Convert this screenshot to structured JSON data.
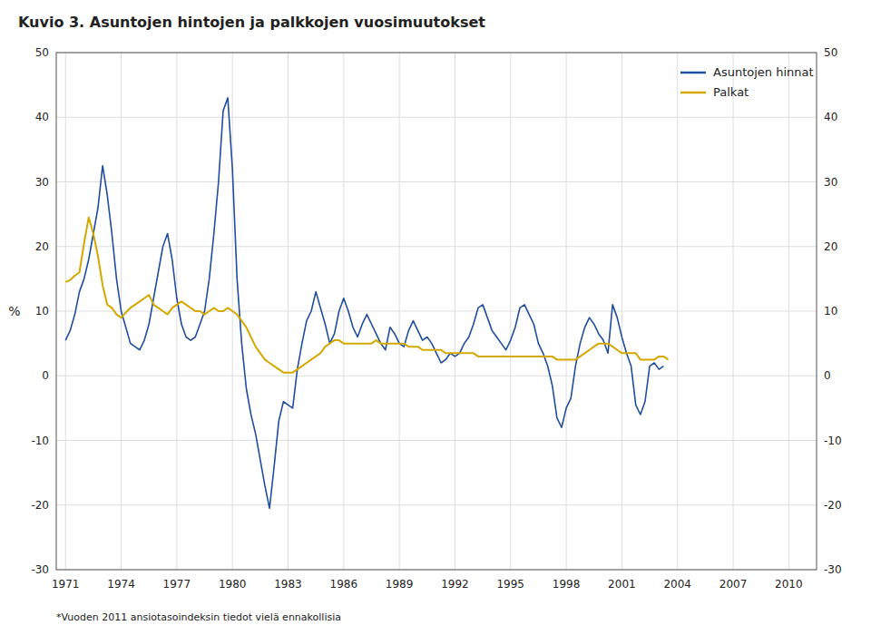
{
  "chart_data": {
    "type": "line",
    "title": "Kuvio 3. Asuntojen hintojen ja palkkojen vuosimuutokset",
    "y_label": "%",
    "annotations": [
      "*Vuoden 2011 ansiotasoindeksin tiedot vielä ennakollisia"
    ],
    "xlim": [
      1970.5,
      2011.5
    ],
    "xticks": [
      1971,
      1974,
      1977,
      1980,
      1983,
      1986,
      1989,
      1992,
      1995,
      1998,
      2001,
      2004,
      2007,
      2010
    ],
    "ylim": [
      -30,
      50
    ],
    "yticks": [
      -30,
      -20,
      -10,
      0,
      10,
      20,
      30,
      40,
      50
    ],
    "y2lim": [
      -30,
      50
    ],
    "y2ticks": [
      -30,
      -20,
      -10,
      0,
      10,
      20,
      30,
      40,
      50
    ],
    "grid": true,
    "legend": "upper right",
    "series": [
      {
        "name": "Asuntojen hinnat",
        "color": "#1f4e9e",
        "x": [
          1971,
          1971.25,
          1971.5,
          1971.75,
          1972,
          1972.25,
          1972.5,
          1972.75,
          1973,
          1973.25,
          1973.5,
          1973.75,
          1974,
          1974.25,
          1974.5,
          1974.75,
          1975,
          1975.25,
          1975.5,
          1975.75,
          1976,
          1976.25,
          1976.5,
          1976.75,
          1977,
          1977.25,
          1977.5,
          1977.75,
          1978,
          1978.25,
          1978.5,
          1978.75,
          1979,
          1979.25,
          1979.5,
          1979.75,
          1980,
          1980.25,
          1980.5,
          1980.75,
          1981,
          1981.25,
          1981.5,
          1981.75,
          1982,
          1982.25,
          1982.5,
          1982.75,
          1983,
          1983.25,
          1983.5,
          1983.75,
          1984,
          1984.25,
          1984.5,
          1984.75,
          1985,
          1985.25,
          1985.5,
          1985.75,
          1986,
          1986.25,
          1986.5,
          1986.75,
          1987,
          1987.25,
          1987.5,
          1987.75,
          1988,
          1988.25,
          1988.5,
          1988.75,
          1989,
          1989.25,
          1989.5,
          1989.75,
          1990,
          1990.25,
          1990.5,
          1990.75,
          1991,
          1991.25,
          1991.5,
          1991.75,
          1992,
          1992.25,
          1992.5,
          1992.75,
          1993,
          1993.25,
          1993.5,
          1993.75,
          1994,
          1994.25,
          1994.5,
          1994.75,
          1995,
          1995.25,
          1995.5,
          1995.75,
          1996,
          1996.25,
          1996.5,
          1996.75,
          1997,
          1997.25,
          1997.5,
          1997.75,
          1998,
          1998.25,
          1998.5,
          1998.75,
          1999,
          1999.25,
          1999.5,
          1999.75,
          2000,
          2000.25,
          2000.5,
          2000.75,
          2001,
          2001.25,
          2001.5,
          2001.75,
          2002,
          2002.25,
          2002.5,
          2002.75,
          2003,
          2003.25
        ],
        "values": [
          5.5,
          7.0,
          9.5,
          13.0,
          15.0,
          18.0,
          22.0,
          26.0,
          32.5,
          28.0,
          22.0,
          15.0,
          10.0,
          7.5,
          5.0,
          4.5,
          4.0,
          5.5,
          8.0,
          12.0,
          16.0,
          20.0,
          22.0,
          18.0,
          12.0,
          8.0,
          6.0,
          5.5,
          6.0,
          8.0,
          10.0,
          15.0,
          22.0,
          30.0,
          41.0,
          43.0,
          32.0,
          15.0,
          5.0,
          -2.0,
          -6.0,
          -9.0,
          -13.0,
          -17.0,
          -20.5,
          -14.0,
          -7.0,
          -4.0,
          -4.5,
          -5.0,
          1.0,
          5.0,
          8.5,
          10.0,
          13.0,
          10.5,
          8.0,
          5.0,
          6.5,
          10.0,
          12.0,
          10.0,
          7.5,
          6.0,
          8.0,
          9.5,
          8.0,
          6.5,
          5.0,
          4.0,
          7.5,
          6.5,
          5.0,
          4.5,
          7.0,
          8.5,
          7.0,
          5.5,
          6.0,
          5.0,
          3.5,
          2.0,
          2.5,
          3.5,
          3.0,
          3.5,
          5.0,
          6.0,
          8.0,
          10.5,
          11.0,
          9.0,
          7.0,
          6.0,
          5.0,
          4.0,
          5.5,
          7.5,
          10.5,
          11.0,
          9.5,
          8.0,
          5.0,
          3.5,
          1.5,
          -1.5,
          -6.5,
          -8.0,
          -5.0,
          -3.5,
          1.5,
          5.0,
          7.5,
          9.0,
          8.0,
          6.5,
          5.5,
          3.5,
          11.0,
          9.0,
          6.0,
          3.5,
          1.5,
          -4.5,
          -6.0,
          -4.0,
          1.5,
          2.0,
          1.0,
          1.5
        ]
      },
      {
        "name": "Palkat",
        "color": "#d4a800",
        "x": [
          1971,
          1971.25,
          1971.5,
          1971.75,
          1972,
          1972.25,
          1972.5,
          1972.75,
          1973,
          1973.25,
          1973.5,
          1973.75,
          1974,
          1974.25,
          1974.5,
          1974.75,
          1975,
          1975.25,
          1975.5,
          1975.75,
          1976,
          1976.25,
          1976.5,
          1976.75,
          1977,
          1977.25,
          1977.5,
          1977.75,
          1978,
          1978.25,
          1978.5,
          1978.75,
          1979,
          1979.25,
          1979.5,
          1979.75,
          1980,
          1980.25,
          1980.5,
          1980.75,
          1981,
          1981.25,
          1981.5,
          1981.75,
          1982,
          1982.25,
          1982.5,
          1982.75,
          1983,
          1983.25,
          1983.5,
          1983.75,
          1984,
          1984.25,
          1984.5,
          1984.75,
          1985,
          1985.25,
          1985.5,
          1985.75,
          1986,
          1986.25,
          1986.5,
          1986.75,
          1987,
          1987.25,
          1987.5,
          1987.75,
          1988,
          1988.25,
          1988.5,
          1988.75,
          1989,
          1989.25,
          1989.5,
          1989.75,
          1990,
          1990.25,
          1990.5,
          1990.75,
          1991,
          1991.25,
          1991.5,
          1991.75,
          1992,
          1992.25,
          1992.5,
          1992.75,
          1993,
          1993.25,
          1993.5,
          1993.75,
          1994,
          1994.25,
          1994.5,
          1994.75,
          1995,
          1995.25,
          1995.5,
          1995.75,
          1996,
          1996.25,
          1996.5,
          1996.75,
          1997,
          1997.25,
          1997.5,
          1997.75,
          1998,
          1998.25,
          1998.5,
          1998.75,
          1999,
          1999.25,
          1999.5,
          1999.75,
          2000,
          2000.25,
          2000.5,
          2000.75,
          2001,
          2001.25,
          2001.5,
          2001.75,
          2002,
          2002.25,
          2002.5,
          2002.75,
          2003,
          2003.25,
          2003.5
        ],
        "values": [
          14.5,
          14.8,
          15.5,
          16.0,
          20.5,
          24.5,
          22.0,
          18.5,
          14.0,
          11.0,
          10.5,
          9.5,
          9.0,
          9.8,
          10.5,
          11.0,
          11.5,
          12.0,
          12.5,
          11.0,
          10.5,
          10.0,
          9.5,
          10.5,
          11.0,
          11.5,
          11.0,
          10.5,
          10.0,
          10.0,
          9.5,
          10.0,
          10.5,
          10.0,
          10.0,
          10.5,
          10.0,
          9.5,
          8.5,
          7.5,
          6.0,
          4.5,
          3.5,
          2.5,
          2.0,
          1.5,
          1.0,
          0.5,
          0.5,
          0.5,
          1.0,
          1.5,
          2.0,
          2.5,
          3.0,
          3.5,
          4.5,
          5.0,
          5.5,
          5.5,
          5.0,
          5.0,
          5.0,
          5.0,
          5.0,
          5.0,
          5.0,
          5.5,
          5.0,
          5.0,
          5.0,
          5.0,
          5.0,
          5.0,
          4.5,
          4.5,
          4.5,
          4.0,
          4.0,
          4.0,
          4.0,
          4.0,
          3.5,
          3.5,
          3.5,
          3.5,
          3.5,
          3.5,
          3.5,
          3.0,
          3.0,
          3.0,
          3.0,
          3.0,
          3.0,
          3.0,
          3.0,
          3.0,
          3.0,
          3.0,
          3.0,
          3.0,
          3.0,
          3.0,
          3.0,
          3.0,
          2.5,
          2.5,
          2.5,
          2.5,
          2.5,
          3.0,
          3.5,
          4.0,
          4.5,
          5.0,
          5.0,
          5.0,
          4.5,
          4.0,
          3.5,
          3.5,
          3.5,
          3.5,
          2.5,
          2.5,
          2.5,
          2.5,
          3.0,
          3.0,
          2.5
        ]
      }
    ]
  }
}
